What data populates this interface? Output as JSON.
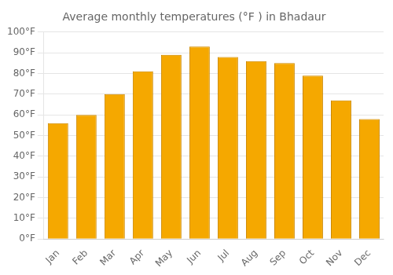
{
  "chart_data": {
    "type": "bar",
    "title": "Average monthly temperatures (°F ) in Bhadaur",
    "categories": [
      "Jan",
      "Feb",
      "Mar",
      "Apr",
      "May",
      "Jun",
      "Jul",
      "Aug",
      "Sep",
      "Oct",
      "Nov",
      "Dec"
    ],
    "values": [
      56,
      60,
      70,
      81,
      89,
      93,
      88,
      86,
      85,
      79,
      67,
      58
    ],
    "color": "#F5A800",
    "ylim": [
      0,
      100
    ],
    "yticks": [
      {
        "value": 0,
        "label": "0°F"
      },
      {
        "value": 10,
        "label": "10°F"
      },
      {
        "value": 20,
        "label": "20°F"
      },
      {
        "value": 30,
        "label": "30°F"
      },
      {
        "value": 40,
        "label": "40°F"
      },
      {
        "value": 50,
        "label": "50°F"
      },
      {
        "value": 60,
        "label": "60°F"
      },
      {
        "value": 70,
        "label": "70°F"
      },
      {
        "value": 80,
        "label": "80°F"
      },
      {
        "value": 90,
        "label": "90°F"
      },
      {
        "value": 100,
        "label": "100°F"
      }
    ],
    "grid": true
  }
}
